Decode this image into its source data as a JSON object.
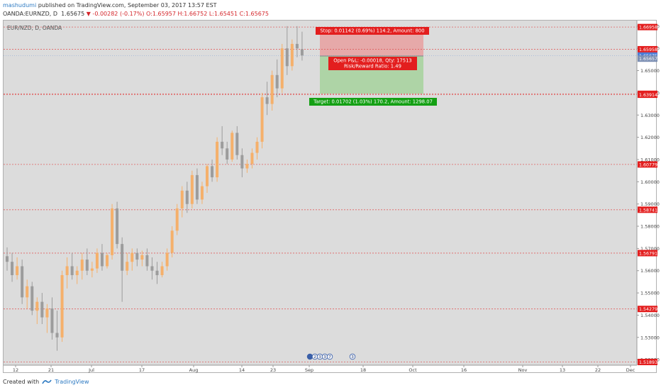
{
  "header": {
    "author": "mashudumi",
    "published": "published on TradingView.com, September 03, 2017 13:57 EST",
    "symbol": "OANDA:EURNZD, D",
    "last": "1.65675",
    "change": "▼ -0.00282 (-0.17%)",
    "ohlc": "O:1.65957 H:1.66752 L:1.65451 C:1.65675"
  },
  "chart_label": "EUR/NZD, D, OANDA",
  "footer": {
    "created": "Created with",
    "brand": "TradingView"
  },
  "colors": {
    "background": "#dcdcdc",
    "up": "#f5b06b",
    "down": "#9c9c9c",
    "level_line": "#e06060",
    "price_tag": "#e31e1e",
    "current_tag": "#4a7bd6",
    "stop_zone": "#e8a0a0",
    "target_zone": "#a9d3a0",
    "target_tag": "#14a014"
  },
  "chart_data": {
    "type": "candlestick",
    "x_ticks": [
      "12",
      "21",
      "Jul",
      "17",
      "Aug",
      "14",
      "23",
      "Sep",
      "18",
      "Oct",
      "16",
      "Nov",
      "13",
      "22",
      "Dec"
    ],
    "y_ticks": [
      "1.52000",
      "1.53000",
      "1.54000",
      "1.55000",
      "1.56000",
      "1.57000",
      "1.58000",
      "1.59000",
      "1.60000",
      "1.61000",
      "1.62000",
      "1.63000",
      "1.64000",
      "1.65000",
      "1.66000",
      "1.67000"
    ],
    "ylim": [
      1.5175,
      1.6725
    ],
    "levels": [
      {
        "value": 1.66958,
        "label": "1.66958"
      },
      {
        "value": 1.6596,
        "label": "1.65958"
      },
      {
        "value": 1.63955,
        "label": "1.63955"
      },
      {
        "value": 1.63914,
        "label": "1.63914"
      },
      {
        "value": 1.60779,
        "label": "1.60779"
      },
      {
        "value": 1.58741,
        "label": "1.58741"
      },
      {
        "value": 1.56791,
        "label": "1.56791"
      },
      {
        "value": 1.54279,
        "label": "1.54279"
      },
      {
        "value": 1.51893,
        "label": "1.51893"
      }
    ],
    "current": {
      "value": 1.65675,
      "label": "1.65675"
    },
    "entry": {
      "value": 1.65657,
      "label": "1.65657"
    },
    "position": {
      "stop_price": 1.66799,
      "entry_price": 1.65657,
      "target_price": 1.63955,
      "stop_text": "Stop: 0.01142 (0.69%) 114.2, Amount: 800",
      "pnl_text": "Open P&L: -0.00018, Qty: 17513",
      "rr_text": "Risk/Reward Ratio: 1.49",
      "target_text": "Target: 0.01702 (1.03%) 170.2, Amount: 1298.07"
    },
    "events": [
      "2",
      "3",
      "3",
      "7",
      "3"
    ],
    "candles": [
      [
        1.5665,
        1.5705,
        1.56,
        1.564
      ],
      [
        1.564,
        1.568,
        1.555,
        1.558
      ],
      [
        1.558,
        1.566,
        1.556,
        1.562
      ],
      [
        1.562,
        1.565,
        1.545,
        1.548
      ],
      [
        1.548,
        1.556,
        1.543,
        1.553
      ],
      [
        1.553,
        1.555,
        1.54,
        1.542
      ],
      [
        1.542,
        1.548,
        1.536,
        1.546
      ],
      [
        1.546,
        1.55,
        1.536,
        1.539
      ],
      [
        1.539,
        1.545,
        1.532,
        1.543
      ],
      [
        1.543,
        1.548,
        1.529,
        1.532
      ],
      [
        1.532,
        1.542,
        1.524,
        1.53
      ],
      [
        1.53,
        1.56,
        1.528,
        1.558
      ],
      [
        1.558,
        1.566,
        1.552,
        1.562
      ],
      [
        1.562,
        1.568,
        1.556,
        1.558
      ],
      [
        1.558,
        1.562,
        1.554,
        1.56
      ],
      [
        1.56,
        1.568,
        1.556,
        1.565
      ],
      [
        1.565,
        1.57,
        1.558,
        1.56
      ],
      [
        1.56,
        1.564,
        1.557,
        1.561
      ],
      [
        1.561,
        1.57,
        1.559,
        1.568
      ],
      [
        1.568,
        1.572,
        1.56,
        1.562
      ],
      [
        1.562,
        1.568,
        1.561,
        1.567
      ],
      [
        1.567,
        1.59,
        1.565,
        1.588
      ],
      [
        1.588,
        1.591,
        1.57,
        1.572
      ],
      [
        1.572,
        1.575,
        1.546,
        1.56
      ],
      [
        1.56,
        1.568,
        1.558,
        1.564
      ],
      [
        1.564,
        1.57,
        1.56,
        1.568
      ],
      [
        1.568,
        1.57,
        1.562,
        1.565
      ],
      [
        1.565,
        1.569,
        1.562,
        1.567
      ],
      [
        1.567,
        1.57,
        1.56,
        1.562
      ],
      [
        1.562,
        1.566,
        1.556,
        1.56
      ],
      [
        1.56,
        1.564,
        1.554,
        1.558
      ],
      [
        1.558,
        1.564,
        1.557,
        1.562
      ],
      [
        1.562,
        1.57,
        1.56,
        1.568
      ],
      [
        1.568,
        1.58,
        1.566,
        1.578
      ],
      [
        1.578,
        1.59,
        1.576,
        1.588
      ],
      [
        1.588,
        1.598,
        1.584,
        1.596
      ],
      [
        1.596,
        1.6,
        1.586,
        1.59
      ],
      [
        1.59,
        1.605,
        1.588,
        1.603
      ],
      [
        1.603,
        1.606,
        1.59,
        1.592
      ],
      [
        1.592,
        1.6,
        1.59,
        1.598
      ],
      [
        1.598,
        1.608,
        1.595,
        1.607
      ],
      [
        1.607,
        1.61,
        1.6,
        1.602
      ],
      [
        1.602,
        1.62,
        1.6,
        1.618
      ],
      [
        1.618,
        1.625,
        1.612,
        1.615
      ],
      [
        1.615,
        1.618,
        1.608,
        1.61
      ],
      [
        1.61,
        1.623,
        1.609,
        1.622
      ],
      [
        1.622,
        1.625,
        1.61,
        1.612
      ],
      [
        1.612,
        1.615,
        1.602,
        1.606
      ],
      [
        1.606,
        1.61,
        1.604,
        1.608
      ],
      [
        1.608,
        1.615,
        1.606,
        1.613
      ],
      [
        1.613,
        1.62,
        1.61,
        1.618
      ],
      [
        1.618,
        1.64,
        1.615,
        1.638
      ],
      [
        1.638,
        1.645,
        1.63,
        1.635
      ],
      [
        1.635,
        1.65,
        1.632,
        1.648
      ],
      [
        1.648,
        1.655,
        1.638,
        1.642
      ],
      [
        1.642,
        1.662,
        1.64,
        1.66
      ],
      [
        1.66,
        1.67,
        1.648,
        1.652
      ],
      [
        1.652,
        1.664,
        1.65,
        1.662
      ],
      [
        1.662,
        1.67,
        1.656,
        1.66
      ],
      [
        1.6596,
        1.6675,
        1.6545,
        1.6568
      ]
    ]
  }
}
